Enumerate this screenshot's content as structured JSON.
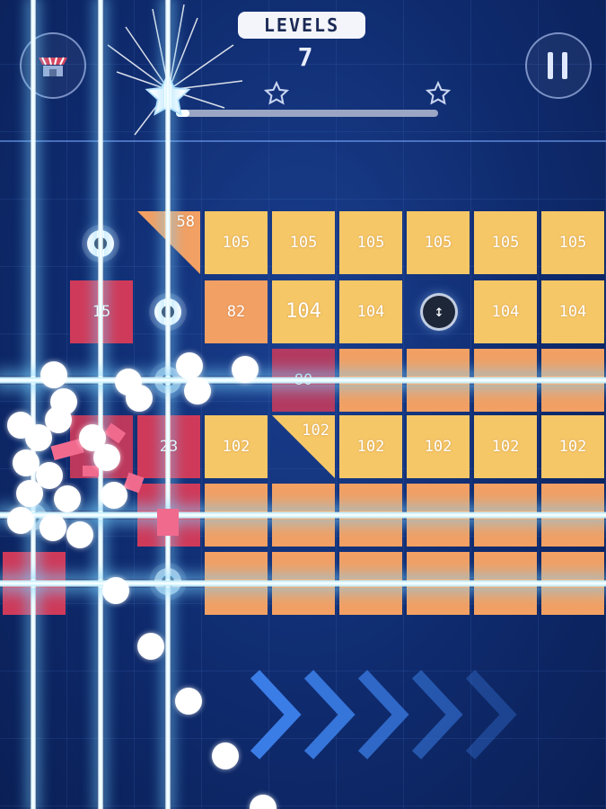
{
  "hud": {
    "level_label": "LEVELS",
    "level_number": "7",
    "progress_fraction": 0.05,
    "stars_total": 3,
    "stars_earned": 1
  },
  "buttons": {
    "shop_icon": "shop-icon",
    "pause_icon": "pause-icon"
  },
  "rows": [
    [
      "58",
      "105",
      "105",
      "105",
      "105",
      "105",
      "105"
    ],
    [
      "15",
      "82",
      "104",
      "104",
      "104",
      "104"
    ],
    [
      "80"
    ],
    [
      "23",
      "102",
      "102",
      "102",
      "102",
      "102",
      "102"
    ]
  ],
  "colors": {
    "background": "#0f2b6e",
    "yellow_block": "#f6c767",
    "orange_block": "#f2a063",
    "pink_block": "#cf3a5a",
    "laser": "#c6f2ff",
    "chevron": "#3b7de6"
  }
}
